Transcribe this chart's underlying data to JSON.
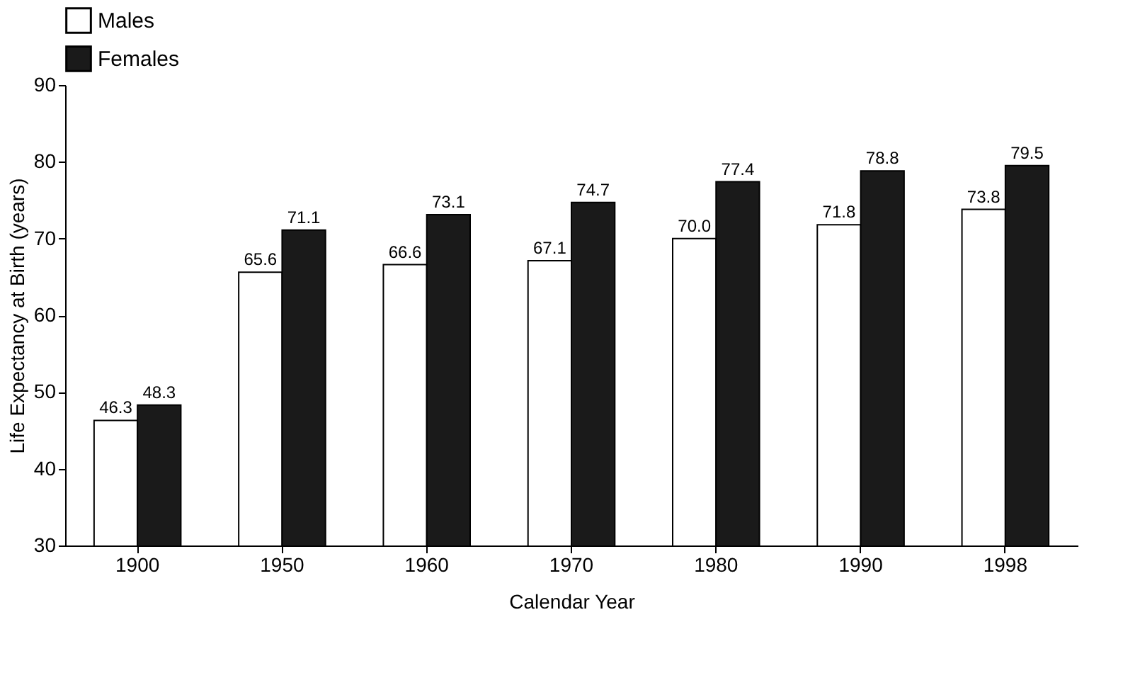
{
  "chart_data": {
    "type": "bar",
    "xlabel": "Calendar Year",
    "ylabel": "Life Expectancy at Birth (years)",
    "categories": [
      "1900",
      "1950",
      "1960",
      "1970",
      "1980",
      "1990",
      "1998"
    ],
    "series": [
      {
        "name": "Males",
        "color": "#ffffff",
        "values": [
          46.3,
          65.6,
          66.6,
          67.1,
          70.0,
          71.8,
          73.8
        ]
      },
      {
        "name": "Females",
        "color": "#1a1a1a",
        "values": [
          48.3,
          71.1,
          73.1,
          74.7,
          77.4,
          78.8,
          79.5
        ]
      }
    ],
    "ylim": [
      30,
      90
    ],
    "yticks": [
      30,
      40,
      50,
      60,
      70,
      80,
      90
    ],
    "grid": false,
    "legend": "top left",
    "value_labels": [
      [
        "46.3",
        "65.6",
        "66.6",
        "67.1",
        "70.0",
        "71.8",
        "73.8"
      ],
      [
        "48.3",
        "71.1",
        "73.1",
        "74.7",
        "77.4",
        "78.8",
        "79.5"
      ]
    ]
  }
}
